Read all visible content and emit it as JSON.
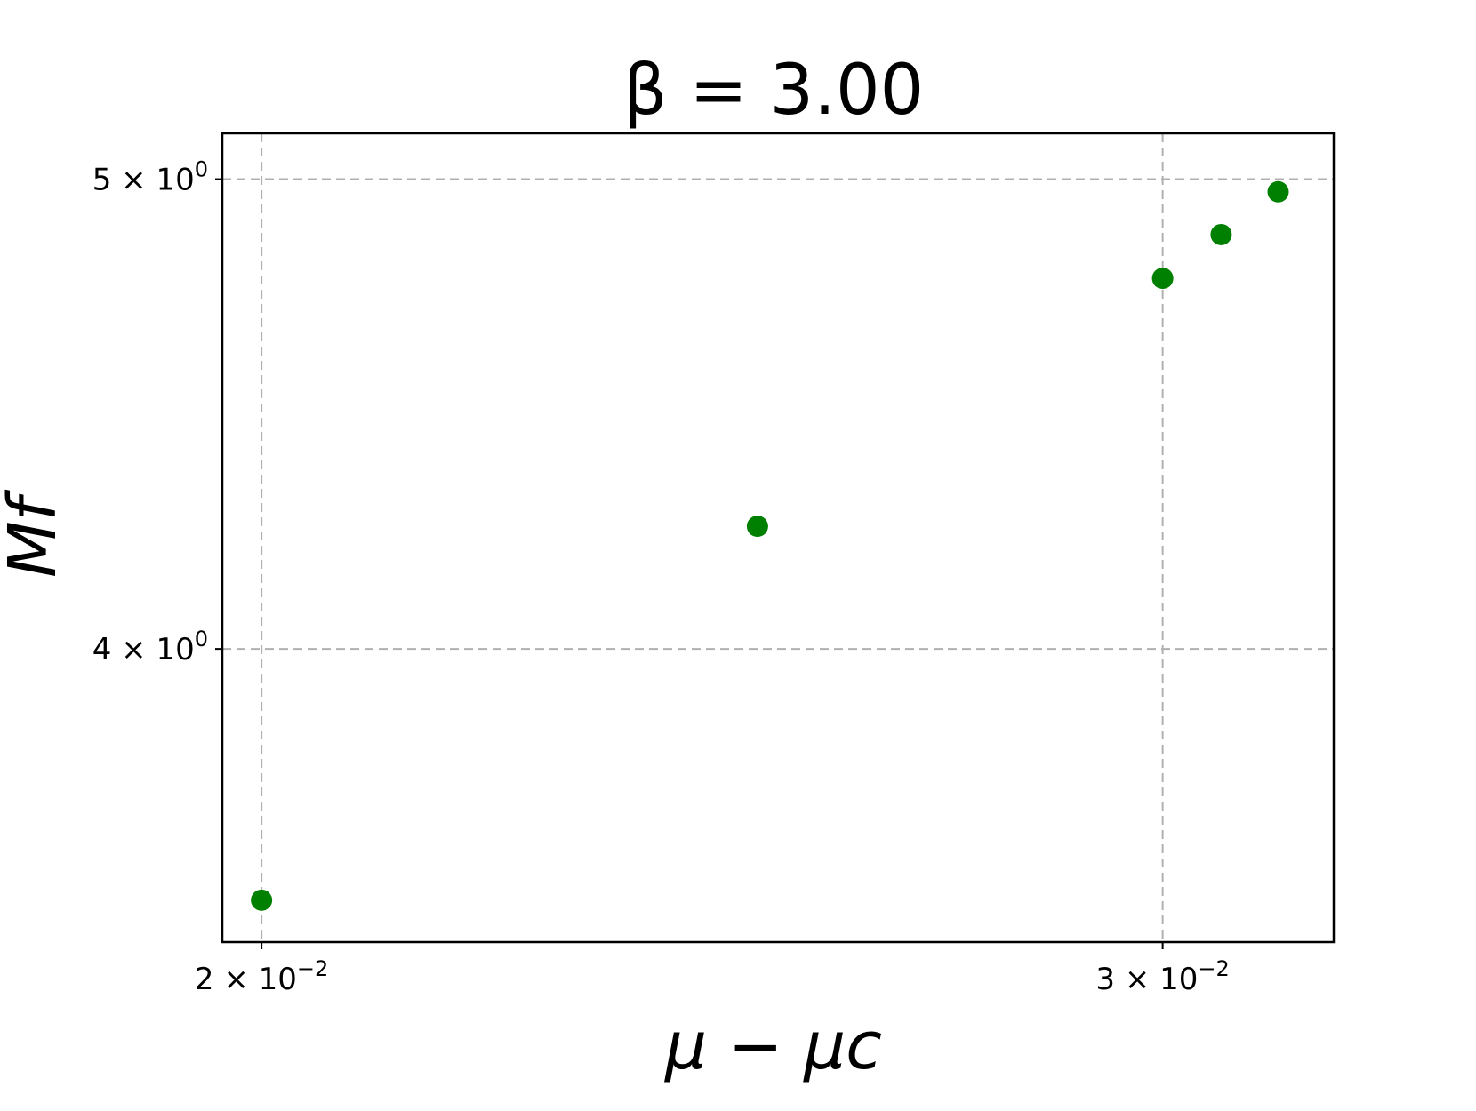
{
  "chart_data": {
    "type": "scatter",
    "title": "β = 3.00",
    "xlabel": "μ − μc",
    "ylabel": "Mf",
    "xscale": "log",
    "yscale": "log",
    "xlim": [
      0.01965,
      0.0324
    ],
    "ylim": [
      3.48,
      5.11
    ],
    "grid": true,
    "marker_color": "#008000",
    "x_ticks": [
      {
        "value": 0.02,
        "label_base": "2 × 10",
        "label_exp": "−2"
      },
      {
        "value": 0.03,
        "label_base": "3 × 10",
        "label_exp": "−2"
      }
    ],
    "y_ticks": [
      {
        "value": 4.0,
        "label_base": "4 × 10",
        "label_exp": "0"
      },
      {
        "value": 5.0,
        "label_base": "5 × 10",
        "label_exp": "0"
      }
    ],
    "series": [
      {
        "points": [
          {
            "x": 0.02,
            "y": 3.55
          },
          {
            "x": 0.025,
            "y": 4.24
          },
          {
            "x": 0.03,
            "y": 4.77
          },
          {
            "x": 0.0308,
            "y": 4.87
          },
          {
            "x": 0.0316,
            "y": 4.97
          }
        ]
      }
    ]
  }
}
